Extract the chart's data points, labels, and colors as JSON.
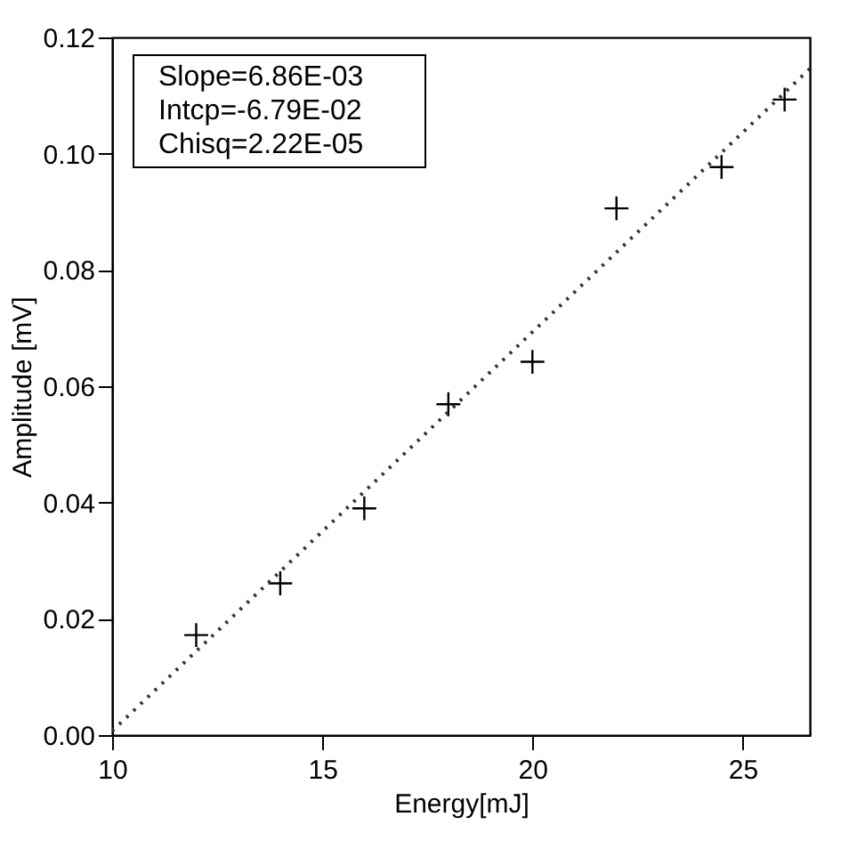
{
  "chart_data": {
    "type": "scatter",
    "xlabel": "Energy[mJ]",
    "ylabel": "Amplitude [mV]",
    "x": [
      12,
      14,
      16,
      18,
      20,
      22,
      24.5,
      26
    ],
    "series": [
      {
        "color": "#000000",
        "marker": "cross",
        "values": [
          0.0172,
          0.0261,
          0.039,
          0.0569,
          0.0642,
          0.0906,
          0.0977,
          0.1093
        ]
      },
      {
        "type": "line",
        "color": "#333333",
        "line_style": "dotted",
        "x": [
          10,
          26.6
        ],
        "values": [
          0.0007,
          0.1146
        ]
      }
    ],
    "xlim": [
      10,
      26.6
    ],
    "xticks": [
      10,
      15,
      20,
      25
    ],
    "ylim": [
      0,
      0.12
    ],
    "yticks": [
      {
        "value": 0,
        "label": "0.00"
      },
      {
        "value": 0.02,
        "label": "0.02"
      },
      {
        "value": 0.04,
        "label": "0.04"
      },
      {
        "value": 0.06,
        "label": "0.06"
      },
      {
        "value": 0.08,
        "label": "0.08"
      },
      {
        "value": 0.1,
        "label": "0.10"
      },
      {
        "value": 0.12,
        "label": "0.12"
      }
    ],
    "annotations": [
      "Slope=6.86E-03",
      "Intcp=-6.79E-02",
      "Chisq=2.22E-05"
    ],
    "grid": false
  }
}
